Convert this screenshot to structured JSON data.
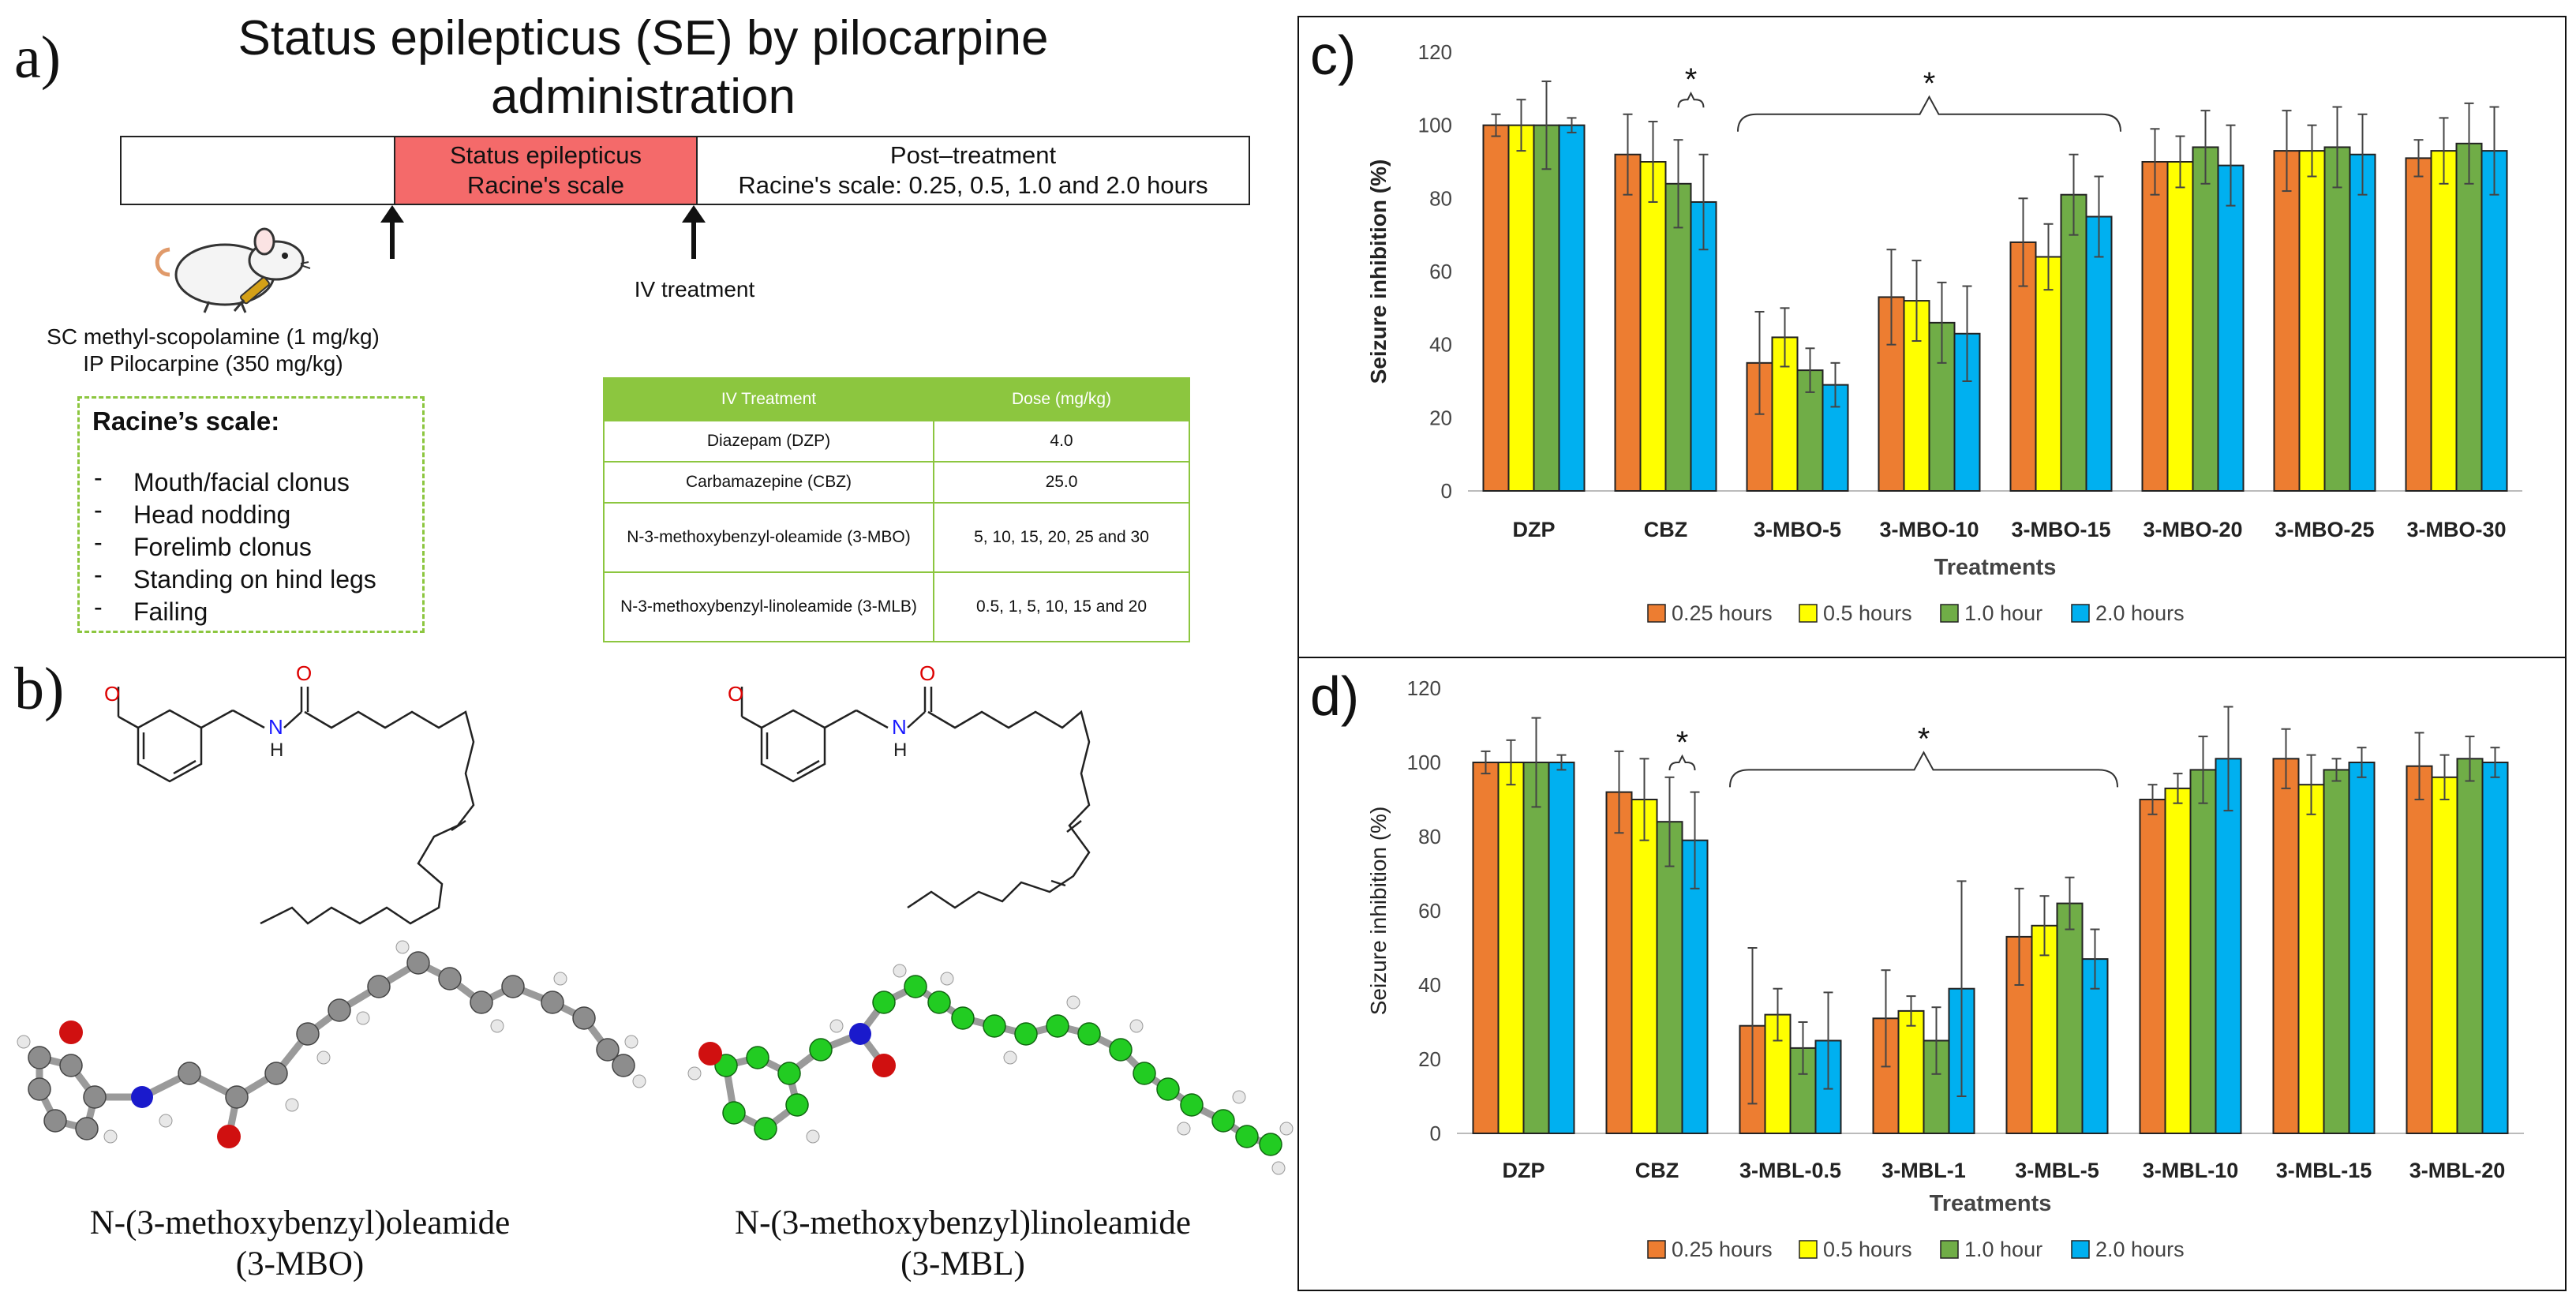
{
  "panel_a": {
    "letter": "a)",
    "title": "Status epilepticus (SE) by pilocarpine administration",
    "timeline": {
      "se_line1": "Status epilepticus",
      "se_line2": "Racine's scale",
      "post_line1": "Post–treatment",
      "post_line2": "Racine's scale: 0.25, 0.5, 1.0 and 2.0 hours"
    },
    "iv_label": "IV treatment",
    "pretreat_line1": "SC methyl-scopolamine (1 mg/kg)",
    "pretreat_line2": "IP Pilocarpine (350 mg/kg)",
    "racine": {
      "title": "Racine’s scale:",
      "items": [
        "Mouth/facial clonus",
        "Head nodding",
        "Forelimb clonus",
        "Standing on hind legs",
        "Failing"
      ]
    },
    "table": {
      "headers": [
        "IV Treatment",
        "Dose (mg/kg)"
      ],
      "rows": [
        [
          "Diazepam (DZP)",
          "4.0"
        ],
        [
          "Carbamazepine (CBZ)",
          "25.0"
        ],
        [
          "N-3-methoxybenzyl-oleamide (3-MBO)",
          "5, 10, 15, 20, 25 and 30"
        ],
        [
          "N-3-methoxybenzyl-linoleamide (3-MLB)",
          "0.5, 1, 5, 10, 15 and 20"
        ]
      ]
    }
  },
  "panel_b": {
    "letter": "b)",
    "mol1_name": "N-(3-methoxybenzyl)oleamide",
    "mol1_abbr": "(3-MBO)",
    "mol2_name": "N-(3-methoxybenzyl)linoleamide",
    "mol2_abbr": "(3-MBL)",
    "atom_o": "O",
    "atom_n": "N",
    "atom_h": "H"
  },
  "colors": {
    "s025": "#ED7D31",
    "s05": "#FFFF00",
    "s10": "#70AD47",
    "s20": "#00B0F0"
  },
  "chart_data": [
    {
      "panel": "c)",
      "type": "bar",
      "ylabel": "Seizure inhibition (%)",
      "xlabel": "Treatments",
      "ylim": [
        0,
        120
      ],
      "yticks": [
        0,
        20,
        40,
        60,
        80,
        100,
        120
      ],
      "categories": [
        "DZP",
        "CBZ",
        "3-MBO-5",
        "3-MBO-10",
        "3-MBO-15",
        "3-MBO-20",
        "3-MBO-25",
        "3-MBO-30"
      ],
      "series": [
        {
          "name": "0.25 hours",
          "values": [
            100,
            92,
            35,
            53,
            68,
            90,
            93,
            91
          ],
          "errors": [
            3,
            11,
            14,
            13,
            12,
            9,
            11,
            5
          ]
        },
        {
          "name": "0.5 hours",
          "values": [
            100,
            90,
            42,
            52,
            64,
            90,
            93,
            93
          ],
          "errors": [
            7,
            11,
            8,
            11,
            9,
            7,
            7,
            9
          ]
        },
        {
          "name": "1.0 hour",
          "values": [
            100,
            84,
            33,
            46,
            81,
            94,
            94,
            95
          ],
          "errors": [
            12,
            12,
            6,
            11,
            11,
            10,
            11,
            11
          ]
        },
        {
          "name": "2.0 hours",
          "values": [
            100,
            79,
            29,
            43,
            75,
            89,
            92,
            93
          ],
          "errors": [
            2,
            13,
            6,
            13,
            11,
            11,
            11,
            12
          ]
        }
      ],
      "annotations": [
        "*",
        "*"
      ]
    },
    {
      "panel": "d)",
      "type": "bar",
      "ylabel": "Seizure inhibition (%)",
      "xlabel": "Treatments",
      "ylim": [
        0,
        120
      ],
      "yticks": [
        0,
        20,
        40,
        60,
        80,
        100,
        120
      ],
      "categories": [
        "DZP",
        "CBZ",
        "3-MBL-0.5",
        "3-MBL-1",
        "3-MBL-5",
        "3-MBL-10",
        "3-MBL-15",
        "3-MBL-20"
      ],
      "series": [
        {
          "name": "0.25 hours",
          "values": [
            100,
            92,
            29,
            31,
            53,
            90,
            101,
            99
          ],
          "errors": [
            3,
            11,
            21,
            13,
            13,
            4,
            8,
            9
          ]
        },
        {
          "name": "0.5 hours",
          "values": [
            100,
            90,
            32,
            33,
            56,
            93,
            94,
            96
          ],
          "errors": [
            6,
            11,
            7,
            4,
            8,
            4,
            8,
            6
          ]
        },
        {
          "name": "1.0 hour",
          "values": [
            100,
            84,
            23,
            25,
            62,
            98,
            98,
            101
          ],
          "errors": [
            12,
            12,
            7,
            9,
            7,
            9,
            3,
            6
          ]
        },
        {
          "name": "2.0 hours",
          "values": [
            100,
            79,
            25,
            39,
            47,
            101,
            100,
            100
          ],
          "errors": [
            2,
            13,
            13,
            29,
            8,
            14,
            4,
            4
          ]
        }
      ],
      "annotations": [
        "*",
        "*"
      ]
    }
  ]
}
